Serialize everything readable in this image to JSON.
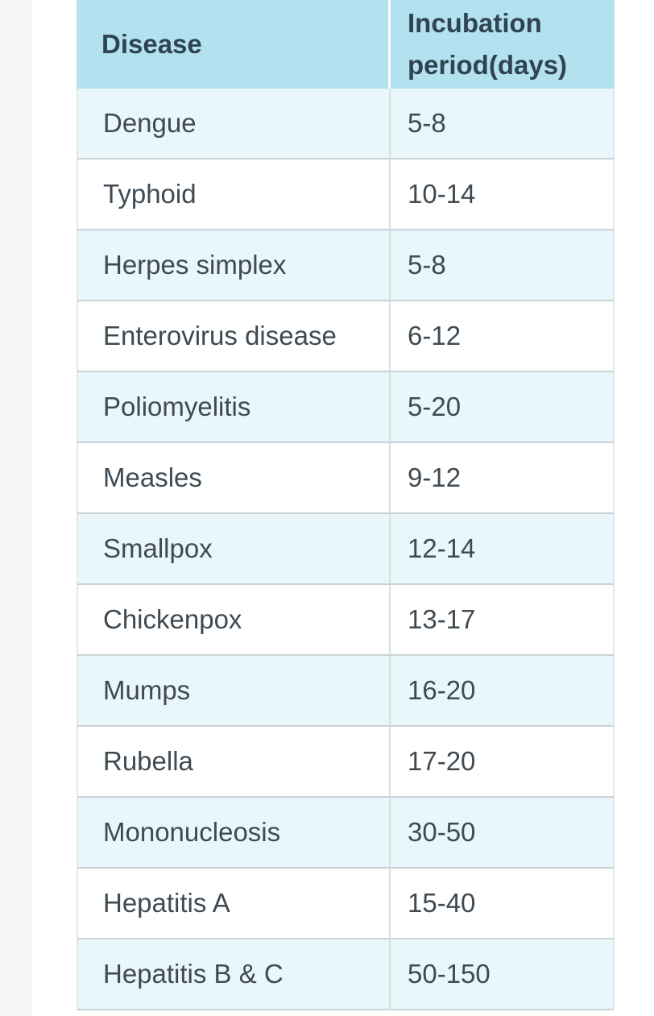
{
  "table": {
    "headers": {
      "disease": "Disease",
      "incubation_line1": "Incubation",
      "incubation_line2": "period(days)"
    },
    "rows": [
      {
        "disease": "Dengue",
        "period": "5-8"
      },
      {
        "disease": "Typhoid",
        "period": "10-14"
      },
      {
        "disease": "Herpes simplex",
        "period": "5-8"
      },
      {
        "disease": "Enterovirus disease",
        "period": "6-12"
      },
      {
        "disease": "Poliomyelitis",
        "period": "5-20"
      },
      {
        "disease": "Measles",
        "period": "9-12"
      },
      {
        "disease": "Smallpox",
        "period": "12-14"
      },
      {
        "disease": "Chickenpox",
        "period": "13-17"
      },
      {
        "disease": "Mumps",
        "period": "16-20"
      },
      {
        "disease": "Rubella",
        "period": "17-20"
      },
      {
        "disease": "Mononucleosis",
        "period": "30-50"
      },
      {
        "disease": "Hepatitis A",
        "period": "15-40"
      },
      {
        "disease": "Hepatitis B & C",
        "period": "50-150"
      }
    ]
  },
  "colors": {
    "header_bg": "#b3e1ef",
    "row_alt_bg": "#e9f6fa",
    "row_bg": "#ffffff",
    "text": "#3f4a52"
  }
}
